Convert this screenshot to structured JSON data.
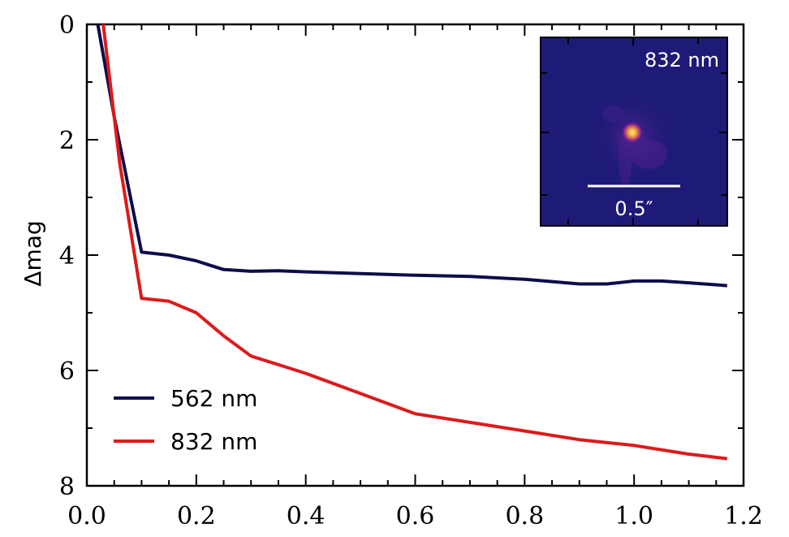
{
  "chart_data": {
    "type": "line",
    "xlabel": "",
    "ylabel": "Δmag",
    "xlim": [
      0.0,
      1.2
    ],
    "ylim": [
      8,
      0
    ],
    "y_inverted": true,
    "x_ticks": [
      "0.0",
      "0.2",
      "0.4",
      "0.6",
      "0.8",
      "1.0",
      "1.2"
    ],
    "y_ticks": [
      "0",
      "2",
      "4",
      "6",
      "8"
    ],
    "grid": false,
    "legend_position": "bottom-left",
    "series": [
      {
        "name": "562 nm",
        "color": "#0d0d4a",
        "points": [
          [
            0.02,
            0.0
          ],
          [
            0.05,
            1.6
          ],
          [
            0.1,
            3.95
          ],
          [
            0.15,
            4.0
          ],
          [
            0.2,
            4.1
          ],
          [
            0.25,
            4.25
          ],
          [
            0.3,
            4.28
          ],
          [
            0.35,
            4.27
          ],
          [
            0.4,
            4.29
          ],
          [
            0.5,
            4.32
          ],
          [
            0.6,
            4.35
          ],
          [
            0.7,
            4.37
          ],
          [
            0.8,
            4.42
          ],
          [
            0.9,
            4.5
          ],
          [
            0.95,
            4.5
          ],
          [
            1.0,
            4.45
          ],
          [
            1.05,
            4.45
          ],
          [
            1.1,
            4.48
          ],
          [
            1.17,
            4.53
          ]
        ]
      },
      {
        "name": "832 nm",
        "color": "#dd1a1a",
        "points": [
          [
            0.03,
            0.0
          ],
          [
            0.06,
            2.4
          ],
          [
            0.1,
            4.75
          ],
          [
            0.15,
            4.8
          ],
          [
            0.2,
            5.0
          ],
          [
            0.25,
            5.4
          ],
          [
            0.3,
            5.75
          ],
          [
            0.35,
            5.9
          ],
          [
            0.4,
            6.05
          ],
          [
            0.5,
            6.4
          ],
          [
            0.6,
            6.75
          ],
          [
            0.7,
            6.9
          ],
          [
            0.8,
            7.05
          ],
          [
            0.9,
            7.2
          ],
          [
            1.0,
            7.3
          ],
          [
            1.1,
            7.45
          ],
          [
            1.17,
            7.53
          ]
        ]
      }
    ],
    "inset": {
      "label": "832 nm",
      "scale_bar_label": "0.5″",
      "colormap": "plasma"
    }
  }
}
